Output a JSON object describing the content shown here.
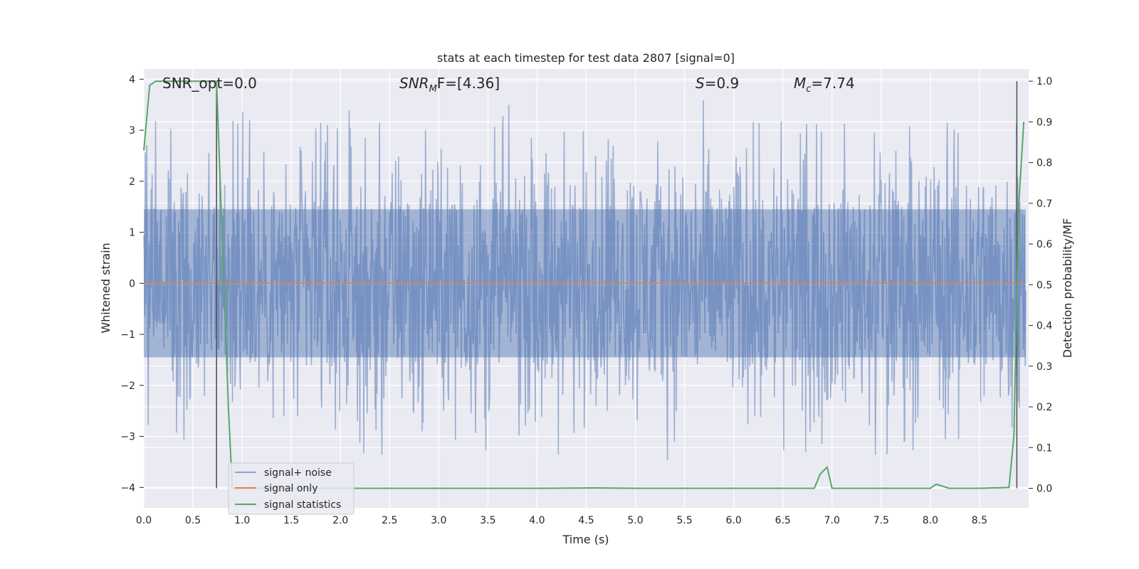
{
  "chart_data": {
    "type": "line",
    "title": "stats at each timestep for test data 2807 [signal=0]",
    "xlabel": "Time (s)",
    "ylabel_left": "Whitened strain",
    "ylabel_right": "Detection probability/MF",
    "xlim": [
      0.0,
      9.0
    ],
    "ylim_left": [
      -4.4,
      4.2
    ],
    "ylim_right": [
      -0.048,
      1.03
    ],
    "grid": true,
    "legend_position": "lower-left",
    "x_ticks": [
      "0.0",
      "0.5",
      "1.0",
      "1.5",
      "2.0",
      "2.5",
      "3.0",
      "3.5",
      "4.0",
      "4.5",
      "5.0",
      "5.5",
      "6.0",
      "6.5",
      "7.0",
      "7.5",
      "8.0",
      "8.5"
    ],
    "y_ticks_left": [
      "4",
      "3",
      "2",
      "1",
      "0",
      "−1",
      "−2",
      "−3",
      "−4"
    ],
    "y_ticks_right": [
      "1.0",
      "0.9",
      "0.8",
      "0.7",
      "0.6",
      "0.5",
      "0.4",
      "0.3",
      "0.2",
      "0.1",
      "0.0"
    ],
    "annotations": {
      "snr_opt": "SNR_opt=0.0",
      "snr_mf_label": "SNR",
      "snr_mf_sub": "M",
      "snr_mf_rest": "F=[4.36]",
      "s_label": "S",
      "s_value": "=0.9",
      "mc_label": "M",
      "mc_sub": "c",
      "mc_value": "=7.74"
    },
    "colors": {
      "noise": "#4c72b0",
      "signal": "#dd8452",
      "stats": "#55a868",
      "vline": "#555555",
      "background": "#eaeaf2",
      "grid": "#ffffff"
    },
    "vlines_x": [
      0.74,
      8.88
    ],
    "series": [
      {
        "name": "signal+ noise",
        "noise_spread": 2.2,
        "noise_extremes_upper": 3.8,
        "noise_extremes_lower": -3.75
      },
      {
        "name": "signal only",
        "value": 0.0
      },
      {
        "name": "signal statistics",
        "x": [
          0.0,
          0.06,
          0.12,
          0.3,
          0.5,
          0.7,
          0.74,
          0.8,
          0.86,
          0.9,
          1.5,
          2.0,
          3.0,
          4.0,
          4.6,
          5.0,
          6.0,
          6.5,
          6.82,
          6.88,
          6.95,
          7.0,
          7.5,
          8.0,
          8.06,
          8.19,
          8.5,
          8.8,
          8.85,
          8.9,
          8.95
        ],
        "y": [
          0.83,
          0.99,
          1.0,
          1.0,
          1.0,
          1.0,
          1.0,
          0.6,
          0.2,
          0.0,
          0.0,
          0.0,
          0.0,
          0.0,
          0.001,
          0.0,
          0.0,
          0.0,
          0.0,
          0.035,
          0.052,
          0.0,
          0.0,
          0.0,
          0.01,
          0.0,
          0.0,
          0.002,
          0.13,
          0.7,
          0.9
        ]
      }
    ]
  }
}
